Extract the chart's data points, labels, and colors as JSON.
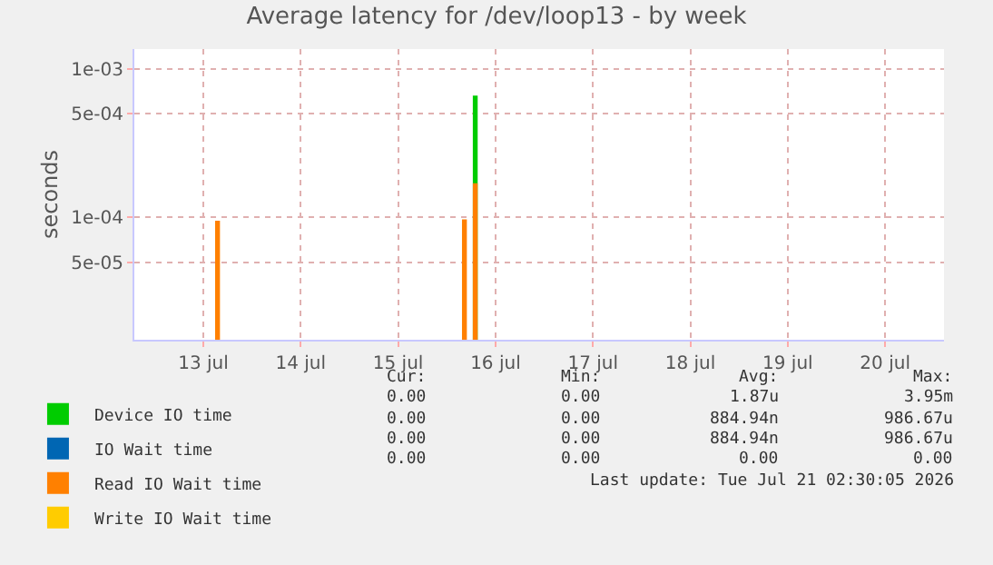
{
  "chart_data": {
    "type": "bar",
    "title": "Average latency for /dev/loop13 - by week",
    "ylabel": "seconds",
    "x": [
      "2026-07-13T15:30",
      "2026-07-16T04:20",
      "2026-07-16T07:00"
    ],
    "series": [
      {
        "name": "Device IO time",
        "color": "#00cc00",
        "values": [
          null,
          null,
          0.00066
        ]
      },
      {
        "name": "IO Wait time",
        "color": "#0066b3",
        "values": [
          null,
          null,
          null
        ]
      },
      {
        "name": "Read IO Wait time",
        "color": "#ff8000",
        "values": [
          9.5e-05,
          9.7e-05,
          0.00017
        ]
      },
      {
        "name": "Write IO Wait time",
        "color": "#ffcc00",
        "values": [
          null,
          null,
          null
        ]
      }
    ],
    "log": true,
    "ylim": [
      1.5e-05,
      0.00136
    ],
    "yticks": [
      {
        "value": 5e-05,
        "label": "5e-05"
      },
      {
        "value": 0.0001,
        "label": "1e-04"
      },
      {
        "value": 0.0005,
        "label": "5e-04"
      },
      {
        "value": 0.001,
        "label": "1e-03"
      }
    ],
    "xlim": [
      "2026-07-12T19:00",
      "2026-07-21T02:30"
    ],
    "xticks": [
      {
        "value": "2026-07-13T12:00",
        "label": "13 jul"
      },
      {
        "value": "2026-07-14T12:00",
        "label": "14 jul"
      },
      {
        "value": "2026-07-15T12:00",
        "label": "15 jul"
      },
      {
        "value": "2026-07-16T12:00",
        "label": "16 jul"
      },
      {
        "value": "2026-07-17T12:00",
        "label": "17 jul"
      },
      {
        "value": "2026-07-18T12:00",
        "label": "18 jul"
      },
      {
        "value": "2026-07-19T12:00",
        "label": "19 jul"
      },
      {
        "value": "2026-07-20T12:00",
        "label": "20 jul"
      }
    ],
    "grid": true,
    "legend": "bottom",
    "annotations": [
      "Cur:",
      "Min:",
      "Avg:",
      "Max:",
      "0.00",
      "0.00",
      "1.87u",
      "3.95m",
      "0.00",
      "0.00",
      "884.94n",
      "986.67u",
      "0.00",
      "0.00",
      "884.94n",
      "986.67u",
      "0.00",
      "0.00",
      "0.00",
      "0.00",
      "Last update: Tue Jul 21 02:30:05 2026"
    ]
  }
}
